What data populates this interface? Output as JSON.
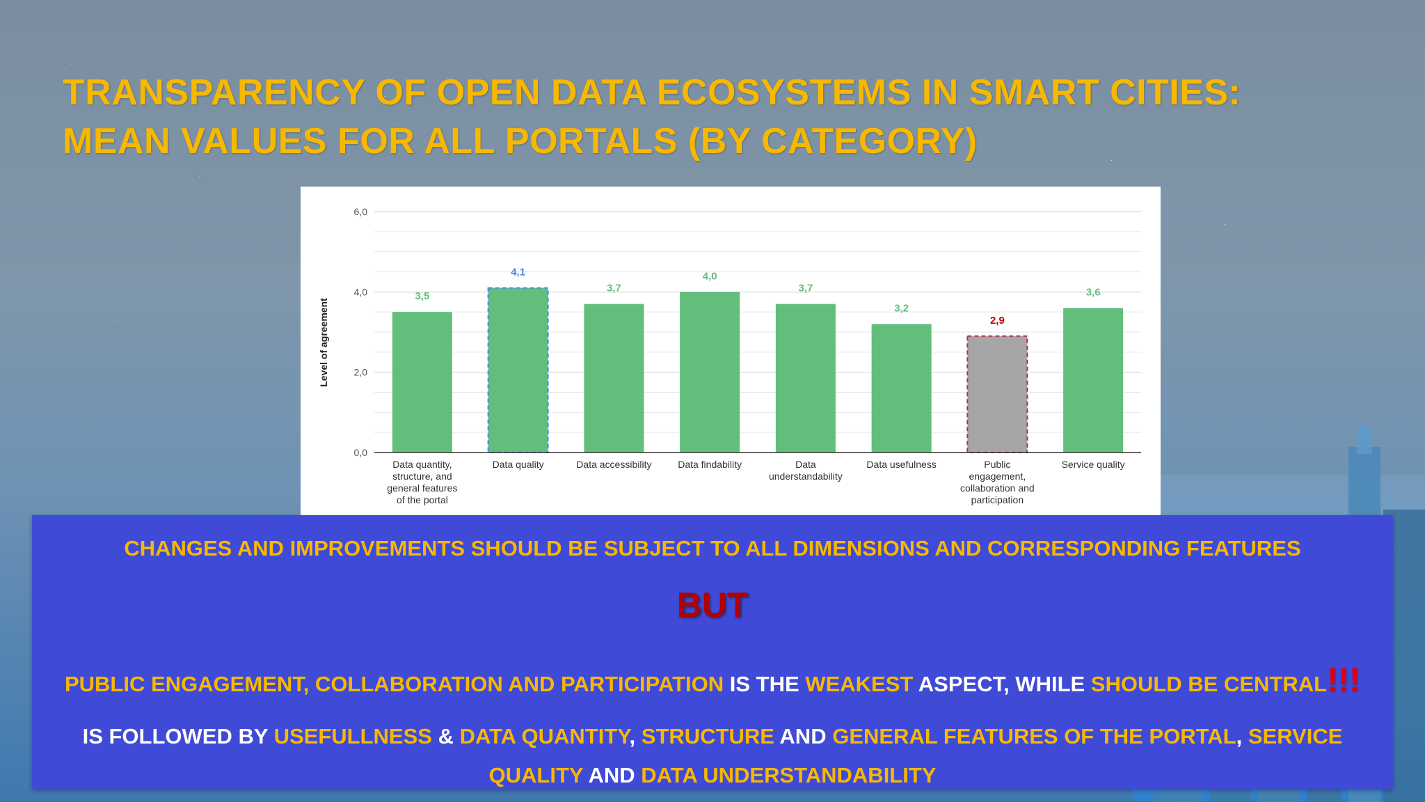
{
  "slide": {
    "title_line1": "TRANSPARENCY OF OPEN DATA ECOSYSTEMS IN SMART CITIES:",
    "title_line2": "MEAN VALUES FOR ALL PORTALS (BY CATEGORY)"
  },
  "chart_data": {
    "type": "bar",
    "ylabel": "Level of agreement",
    "ylim": [
      0,
      6
    ],
    "yticks": [
      "0,0",
      "2,0",
      "4,0",
      "6,0"
    ],
    "grid": true,
    "categories": [
      [
        "Data quantity,",
        "structure, and",
        "general features",
        "of the portal"
      ],
      [
        "Data quality"
      ],
      [
        "Data accessibility"
      ],
      [
        "Data findability"
      ],
      [
        "Data",
        "understandability"
      ],
      [
        "Data usefulness"
      ],
      [
        "Public",
        "engagement,",
        "collaboration and",
        "participation"
      ],
      [
        "Service quality"
      ]
    ],
    "values": [
      3.5,
      4.1,
      3.7,
      4.0,
      3.7,
      3.2,
      2.9,
      3.6
    ],
    "value_labels": [
      "3,5",
      "4,1",
      "3,7",
      "4,0",
      "3,7",
      "3,2",
      "2,9",
      "3,6"
    ],
    "bar_colors": [
      "#61bf7b",
      "#61bf7b",
      "#61bf7b",
      "#61bf7b",
      "#61bf7b",
      "#61bf7b",
      "#a6a6a6",
      "#61bf7b"
    ],
    "highlight_outline": [
      "",
      "#4a86e8",
      "",
      "",
      "",
      "",
      "#b03040",
      ""
    ],
    "label_colors": [
      "#61bf7b",
      "#4a86e8",
      "#61bf7b",
      "#61bf7b",
      "#61bf7b",
      "#61bf7b",
      "#b30000",
      "#61bf7b"
    ]
  },
  "box": {
    "line1": "CHANGES AND IMPROVEMENTS SHOULD BE SUBJECT TO ALL DIMENSIONS AND CORRESPONDING FEATURES",
    "line2": "BUT",
    "line3": {
      "a": "PUBLIC ENGAGEMENT, COLLABORATION AND PARTICIPATION",
      "b": " IS THE ",
      "c": "WEAKEST",
      "d": " ASPECT, WHILE ",
      "e": "SHOULD BE CENTRAL",
      "f": "!!!"
    },
    "line4": {
      "a": "IS FOLLOWED BY ",
      "b": "USEFULLNESS",
      "c": " & ",
      "d": "DATA QUANTITY",
      "e": ", ",
      "f": "STRUCTURE",
      "g": " AND ",
      "h": "GENERAL FEATURES OF THE PORTAL",
      "i": ", ",
      "j": "SERVICE QUALITY",
      "k": " AND ",
      "l": "DATA UNDERSTANDABILITY"
    }
  }
}
